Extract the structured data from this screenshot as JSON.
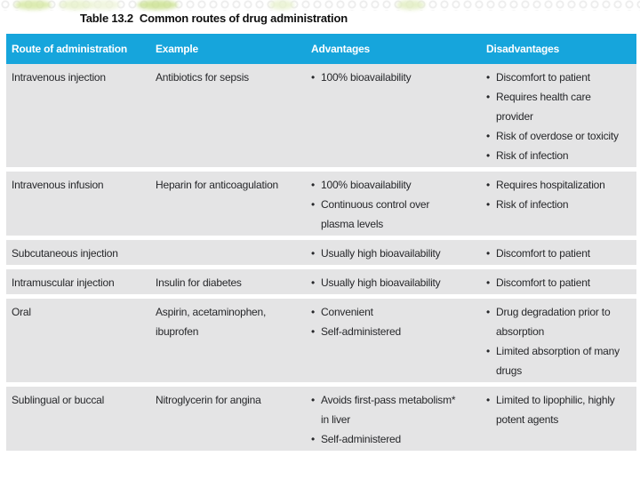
{
  "title": {
    "label": "Table 13.2",
    "text": "Common routes of drug administration"
  },
  "table": {
    "columns": [
      "Route of administration",
      "Example",
      "Advantages",
      "Disadvantages"
    ],
    "rows": [
      {
        "route": "Intravenous injection",
        "example": "Antibiotics for sepsis",
        "advantages": [
          "100% bioavailability"
        ],
        "disadvantages": [
          "Discomfort to patient",
          "Requires health care provider",
          "Risk of overdose or toxicity",
          "Risk of infection"
        ]
      },
      {
        "route": "Intravenous infusion",
        "example": "Heparin for anticoagulation",
        "advantages": [
          "100% bioavailability",
          "Continuous control over plasma levels"
        ],
        "disadvantages": [
          "Requires hospitalization",
          "Risk of infection"
        ]
      },
      {
        "route": "Subcutaneous injection",
        "example": "",
        "advantages": [
          "Usually high bioavailability"
        ],
        "disadvantages": [
          "Discomfort to patient"
        ]
      },
      {
        "route": "Intramuscular injection",
        "example": "Insulin for diabetes",
        "advantages": [
          "Usually high bioavailability"
        ],
        "disadvantages": [
          "Discomfort to patient"
        ]
      },
      {
        "route": "Oral",
        "example": "Aspirin, acetaminophen, ibuprofen",
        "advantages": [
          "Convenient",
          "Self-administered"
        ],
        "disadvantages": [
          "Drug degradation prior to absorption",
          "Limited absorption of many drugs"
        ]
      },
      {
        "route": "Sublingual or buccal",
        "example": "Nitroglycerin for angina",
        "advantages": [
          "Avoids first-pass metabolism* in liver",
          "Self-administered"
        ],
        "disadvantages": [
          "Limited to lipophilic, highly potent agents"
        ]
      }
    ]
  },
  "colors": {
    "header_bg": "#16a5dc",
    "row_bg": "#e4e4e5",
    "text": "#26272a",
    "header_text": "#ffffff",
    "title_text": "#101010"
  }
}
